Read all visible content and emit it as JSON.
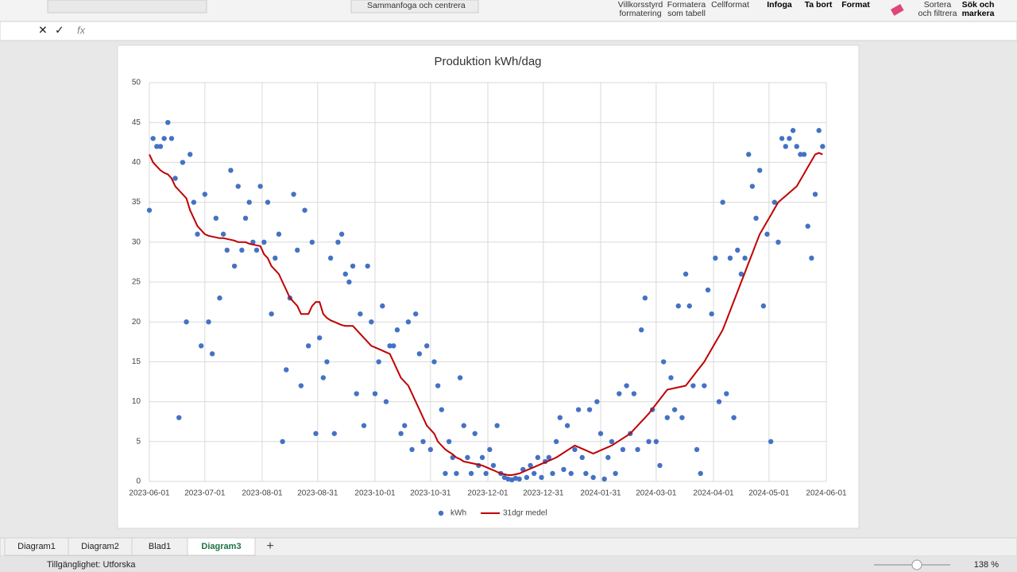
{
  "ribbon": {
    "merge": "Sammanfoga och centrera",
    "cond_format": [
      "Villkorsstyrd",
      "formatering"
    ],
    "format_table": [
      "Formatera",
      "som tabell"
    ],
    "cell_format": "Cellformat",
    "insert": "Infoga",
    "delete": "Ta bort",
    "format": "Format",
    "sort": [
      "Sortera",
      "och filtrera"
    ],
    "find": [
      "Sök och",
      "markera"
    ],
    "fx": "fx"
  },
  "sheets": [
    "Diagram1",
    "Diagram2",
    "Blad1",
    "Diagram3"
  ],
  "active_sheet": 3,
  "status": {
    "accessibility": "Tillgänglighet: Utforska",
    "zoom": "138 %"
  },
  "chart_data": {
    "type": "scatter",
    "title": "Produktion kWh/dag",
    "x": [
      45078,
      45080,
      45082,
      45084,
      45086,
      45088,
      45090,
      45092,
      45094,
      45096,
      45098,
      45100,
      45102,
      45104,
      45106,
      45108,
      45110,
      45112,
      45114,
      45116,
      45118,
      45120,
      45122,
      45124,
      45126,
      45128,
      45130,
      45132,
      45134,
      45136,
      45138,
      45140,
      45142,
      45144,
      45146,
      45148,
      45150,
      45152,
      45154,
      45156,
      45158,
      45160,
      45162,
      45164,
      45166,
      45168,
      45170,
      45172,
      45174,
      45176,
      45178,
      45180,
      45182,
      45184,
      45186,
      45188,
      45190,
      45192,
      45194,
      45196,
      45198,
      45200,
      45202,
      45204,
      45206,
      45208,
      45210,
      45212,
      45214,
      45216,
      45218,
      45220,
      45222,
      45224,
      45226,
      45228,
      45230,
      45232,
      45234,
      45236,
      45238,
      45240,
      45242,
      45244,
      45246,
      45248,
      45250,
      45252,
      45254,
      45256,
      45258,
      45260,
      45262,
      45264,
      45266,
      45268,
      45270,
      45272,
      45274,
      45276,
      45278,
      45280,
      45282,
      45284,
      45286,
      45288,
      45290,
      45292,
      45294,
      45296,
      45298,
      45300,
      45302,
      45304,
      45306,
      45308,
      45310,
      45312,
      45314,
      45316,
      45318,
      45320,
      45322,
      45324,
      45326,
      45328,
      45330,
      45332,
      45334,
      45336,
      45338,
      45340,
      45342,
      45344,
      45346,
      45348,
      45350,
      45352,
      45354,
      45356,
      45358,
      45360,
      45362,
      45364,
      45366,
      45368,
      45370,
      45372,
      45374,
      45376,
      45378,
      45380,
      45382,
      45384,
      45386,
      45388,
      45390,
      45392,
      45394,
      45396,
      45398,
      45400,
      45402,
      45404,
      45406,
      45408,
      45410,
      45412,
      45414,
      45416,
      45418,
      45420,
      45422,
      45424,
      45426,
      45428,
      45430,
      45432,
      45434,
      45436,
      45438,
      45440,
      45442
    ],
    "series": [
      {
        "name": "kWh",
        "style": "markers",
        "color": "#4472c4",
        "values": [
          34,
          43,
          42,
          42,
          43,
          45,
          43,
          38,
          8,
          40,
          20,
          41,
          35,
          31,
          17,
          36,
          20,
          16,
          33,
          23,
          31,
          29,
          39,
          27,
          37,
          29,
          33,
          35,
          30,
          29,
          37,
          30,
          35,
          21,
          28,
          31,
          5,
          14,
          23,
          36,
          29,
          12,
          34,
          17,
          30,
          6,
          18,
          13,
          15,
          28,
          6,
          30,
          31,
          26,
          25,
          27,
          11,
          21,
          7,
          27,
          20,
          11,
          15,
          22,
          10,
          17,
          17,
          19,
          6,
          7,
          20,
          4,
          21,
          16,
          5,
          17,
          4,
          15,
          12,
          9,
          1,
          5,
          3,
          1,
          13,
          7,
          3,
          1,
          6,
          2,
          3,
          1,
          4,
          2,
          7,
          1,
          0.5,
          0.3,
          0.2,
          0.4,
          0.3,
          1.5,
          0.5,
          2,
          1,
          3,
          0.5,
          2.5,
          3,
          1,
          5,
          8,
          1.5,
          7,
          1,
          4,
          9,
          3,
          1,
          9,
          0.5,
          10,
          6,
          0.3,
          3,
          5,
          1,
          11,
          4,
          12,
          6,
          11,
          4,
          19,
          23,
          5,
          9,
          5,
          2,
          15,
          8,
          13,
          9,
          22,
          8,
          26,
          22,
          12,
          4,
          1,
          12,
          24,
          21,
          28,
          10,
          35,
          11,
          28,
          8,
          29,
          26,
          28,
          41,
          37,
          33,
          39,
          22,
          31,
          5,
          35,
          30,
          43,
          42,
          43,
          44,
          42,
          41,
          41,
          32,
          28,
          36,
          44,
          42
        ]
      },
      {
        "name": "31dgr medel",
        "style": "line",
        "color": "#c00000",
        "values": [
          41,
          40,
          39.5,
          39,
          38.7,
          38.5,
          38,
          37,
          36.5,
          36,
          35.5,
          34,
          33,
          32,
          31.5,
          31,
          30.8,
          30.7,
          30.6,
          30.5,
          30.5,
          30.4,
          30.3,
          30.2,
          30,
          30,
          30,
          29.8,
          29.7,
          29.6,
          29.5,
          28.5,
          28,
          27,
          26.5,
          26,
          25,
          24,
          23,
          22.5,
          22,
          21,
          21,
          21,
          22,
          22.5,
          22.5,
          21,
          20.5,
          20.2,
          20,
          19.8,
          19.6,
          19.5,
          19.5,
          19.5,
          19,
          18.5,
          18,
          17.5,
          17,
          16.8,
          16.6,
          16.4,
          16.2,
          16,
          15,
          14,
          13,
          12.5,
          12,
          11,
          10,
          9,
          8,
          7,
          6.5,
          6,
          5,
          4.5,
          4,
          3.7,
          3.4,
          3,
          2.8,
          2.5,
          2.4,
          2.3,
          2.2,
          2.1,
          2,
          1.8,
          1.6,
          1.4,
          1.2,
          1,
          0.9,
          0.8,
          0.8,
          0.9,
          1,
          1.2,
          1.4,
          1.6,
          1.8,
          2,
          2.2,
          2.4,
          2.6,
          2.8,
          3,
          3.3,
          3.6,
          3.9,
          4.2,
          4.5,
          4.3,
          4.1,
          3.9,
          3.7,
          3.5,
          3.7,
          3.9,
          4.1,
          4.3,
          4.5,
          4.8,
          5.1,
          5.4,
          5.7,
          6,
          6.5,
          7,
          7.5,
          8,
          8.5,
          9.1,
          9.7,
          10.3,
          10.9,
          11.5,
          11.6,
          11.7,
          11.8,
          11.9,
          12,
          12.6,
          13.2,
          13.8,
          14.4,
          15,
          15.8,
          16.6,
          17.4,
          18.2,
          19,
          20.2,
          21.4,
          22.6,
          23.8,
          25,
          26.2,
          27.4,
          28.6,
          29.8,
          31,
          31.8,
          32.6,
          33.4,
          34.2,
          35,
          35.4,
          35.8,
          36.2,
          36.6,
          37,
          37.8,
          38.6,
          39.4,
          40.2,
          41,
          41.2,
          41
        ]
      }
    ],
    "xlim": [
      45078,
      45444
    ],
    "xticks": [
      {
        "value": 45078,
        "label": "2023-06-01"
      },
      {
        "value": 45108,
        "label": "2023-07-01"
      },
      {
        "value": 45139,
        "label": "2023-08-01"
      },
      {
        "value": 45169,
        "label": "2023-08-31"
      },
      {
        "value": 45200,
        "label": "2023-10-01"
      },
      {
        "value": 45230,
        "label": "2023-10-31"
      },
      {
        "value": 45261,
        "label": "2023-12-01"
      },
      {
        "value": 45291,
        "label": "2023-12-31"
      },
      {
        "value": 45322,
        "label": "2024-01-31"
      },
      {
        "value": 45352,
        "label": "2024-03-01"
      },
      {
        "value": 45383,
        "label": "2024-04-01"
      },
      {
        "value": 45413,
        "label": "2024-05-01"
      },
      {
        "value": 45444,
        "label": "2024-06-01"
      }
    ],
    "ylim": [
      0,
      50
    ],
    "yticks": [
      0,
      5,
      10,
      15,
      20,
      25,
      30,
      35,
      40,
      45,
      50
    ],
    "grid": true,
    "legend": "bottom"
  }
}
